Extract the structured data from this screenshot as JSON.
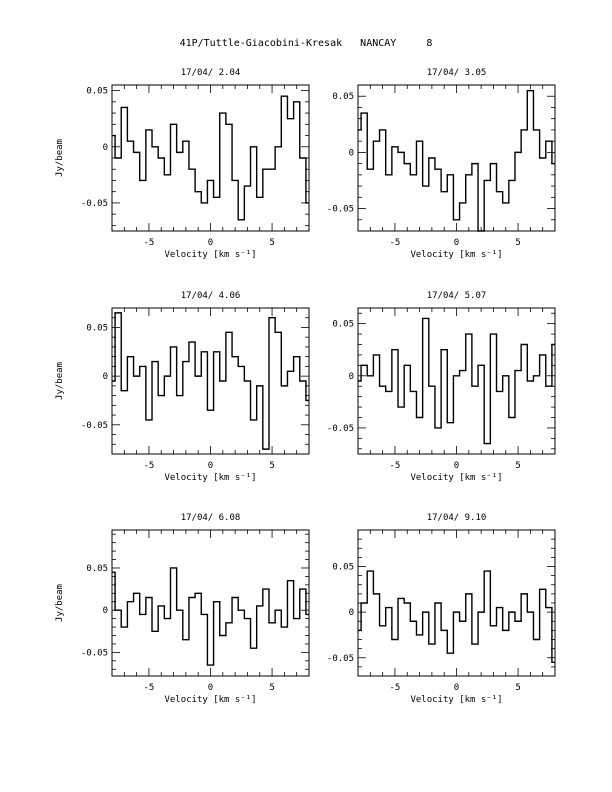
{
  "page": {
    "title": "41P/Tuttle-Giacobini-Kresak   NANCAY     8"
  },
  "chart_data": [
    {
      "type": "line",
      "title": "17/04/ 2.04",
      "xlabel": "Velocity [km s⁻¹]",
      "ylabel": "Jy/beam",
      "xlim": [
        -8,
        8
      ],
      "ylim": [
        -0.075,
        0.055
      ],
      "xticks": [
        -5,
        0,
        5
      ],
      "yticks": [
        0.05,
        0,
        -0.05
      ],
      "ytick_labels": [
        "0.05",
        "0",
        "-0.05"
      ],
      "series": [
        {
          "x": [
            -8,
            -7.5,
            -7,
            -6.5,
            -6,
            -5.5,
            -5,
            -4.5,
            -4,
            -3.5,
            -3,
            -2.5,
            -2,
            -1.5,
            -1,
            -0.5,
            0,
            0.5,
            1,
            1.5,
            2,
            2.5,
            3,
            3.5,
            4,
            4.5,
            5,
            5.5,
            6,
            6.5,
            7,
            7.5,
            8
          ],
          "values": [
            0.01,
            -0.01,
            0.035,
            0.005,
            -0.005,
            -0.03,
            0.015,
            0.0,
            -0.01,
            -0.025,
            0.02,
            -0.005,
            0.005,
            -0.02,
            -0.04,
            -0.05,
            -0.03,
            -0.045,
            0.03,
            0.02,
            -0.03,
            -0.065,
            -0.035,
            0.0,
            -0.045,
            -0.02,
            -0.02,
            0.0,
            0.045,
            0.025,
            0.04,
            -0.01,
            -0.05
          ]
        }
      ]
    },
    {
      "type": "line",
      "title": "17/04/ 3.05",
      "xlabel": "Velocity [km s⁻¹]",
      "ylabel": "",
      "xlim": [
        -8,
        8
      ],
      "ylim": [
        -0.07,
        0.06
      ],
      "xticks": [
        -5,
        0,
        5
      ],
      "yticks": [
        0.05,
        0,
        -0.05
      ],
      "ytick_labels": [
        "0.05",
        "0",
        "-0.05"
      ],
      "series": [
        {
          "x": [
            -8,
            -7.5,
            -7,
            -6.5,
            -6,
            -5.5,
            -5,
            -4.5,
            -4,
            -3.5,
            -3,
            -2.5,
            -2,
            -1.5,
            -1,
            -0.5,
            0,
            0.5,
            1,
            1.5,
            2,
            2.5,
            3,
            3.5,
            4,
            4.5,
            5,
            5.5,
            6,
            6.5,
            7,
            7.5,
            8
          ],
          "values": [
            0.02,
            0.035,
            -0.015,
            0.01,
            0.02,
            -0.02,
            0.005,
            0.0,
            -0.01,
            -0.02,
            0.01,
            -0.03,
            -0.005,
            -0.015,
            -0.035,
            -0.02,
            -0.06,
            -0.045,
            -0.02,
            -0.01,
            -0.07,
            -0.025,
            -0.01,
            -0.035,
            -0.045,
            -0.025,
            0.0,
            0.02,
            0.055,
            0.02,
            -0.005,
            0.01,
            -0.01
          ]
        }
      ]
    },
    {
      "type": "line",
      "title": "17/04/ 4.06",
      "xlabel": "Velocity [km s⁻¹]",
      "ylabel": "Jy/beam",
      "xlim": [
        -8,
        8
      ],
      "ylim": [
        -0.08,
        0.07
      ],
      "xticks": [
        -5,
        0,
        5
      ],
      "yticks": [
        0.05,
        0,
        -0.05
      ],
      "ytick_labels": [
        "0.05",
        "0",
        "-0.05"
      ],
      "series": [
        {
          "x": [
            -8,
            -7.5,
            -7,
            -6.5,
            -6,
            -5.5,
            -5,
            -4.5,
            -4,
            -3.5,
            -3,
            -2.5,
            -2,
            -1.5,
            -1,
            -0.5,
            0,
            0.5,
            1,
            1.5,
            2,
            2.5,
            3,
            3.5,
            4,
            4.5,
            5,
            5.5,
            6,
            6.5,
            7,
            7.5,
            8
          ],
          "values": [
            -0.005,
            0.065,
            -0.015,
            0.02,
            0.0,
            0.01,
            -0.045,
            0.015,
            -0.02,
            0.0,
            0.03,
            -0.02,
            0.015,
            0.035,
            0.0,
            0.025,
            -0.035,
            0.025,
            -0.005,
            0.045,
            0.02,
            0.01,
            -0.005,
            -0.045,
            -0.01,
            -0.075,
            0.06,
            0.045,
            -0.01,
            0.005,
            0.02,
            -0.005,
            -0.025
          ]
        }
      ]
    },
    {
      "type": "line",
      "title": "17/04/ 5.07",
      "xlabel": "Velocity [km s⁻¹]",
      "ylabel": "",
      "xlim": [
        -8,
        8
      ],
      "ylim": [
        -0.075,
        0.065
      ],
      "xticks": [
        -5,
        0,
        5
      ],
      "yticks": [
        0.05,
        0,
        -0.05
      ],
      "ytick_labels": [
        "0.05",
        "0",
        "-0.05"
      ],
      "series": [
        {
          "x": [
            -8,
            -7.5,
            -7,
            -6.5,
            -6,
            -5.5,
            -5,
            -4.5,
            -4,
            -3.5,
            -3,
            -2.5,
            -2,
            -1.5,
            -1,
            -0.5,
            0,
            0.5,
            1,
            1.5,
            2,
            2.5,
            3,
            3.5,
            4,
            4.5,
            5,
            5.5,
            6,
            6.5,
            7,
            7.5,
            8
          ],
          "values": [
            -0.005,
            0.01,
            0.0,
            0.02,
            -0.01,
            -0.015,
            0.025,
            -0.03,
            0.01,
            -0.015,
            -0.04,
            0.055,
            -0.01,
            -0.05,
            0.025,
            -0.045,
            0.0,
            0.005,
            0.04,
            -0.01,
            0.01,
            -0.065,
            0.04,
            -0.015,
            0.0,
            -0.04,
            0.005,
            0.03,
            -0.005,
            0.0,
            0.02,
            -0.01,
            0.03
          ]
        }
      ]
    },
    {
      "type": "line",
      "title": "17/04/ 6.08",
      "xlabel": "Velocity [km s⁻¹]",
      "ylabel": "Jy/beam",
      "xlim": [
        -8,
        8
      ],
      "ylim": [
        -0.078,
        0.095
      ],
      "xticks": [
        -5,
        0,
        5
      ],
      "yticks": [
        0.05,
        0,
        -0.05
      ],
      "ytick_labels": [
        "0.05",
        "0",
        "-0.05"
      ],
      "series": [
        {
          "x": [
            -8,
            -7.5,
            -7,
            -6.5,
            -6,
            -5.5,
            -5,
            -4.5,
            -4,
            -3.5,
            -3,
            -2.5,
            -2,
            -1.5,
            -1,
            -0.5,
            0,
            0.5,
            1,
            1.5,
            2,
            2.5,
            3,
            3.5,
            4,
            4.5,
            5,
            5.5,
            6,
            6.5,
            7,
            7.5,
            8
          ],
          "values": [
            0.045,
            0.0,
            -0.02,
            0.01,
            0.02,
            -0.005,
            0.015,
            -0.025,
            0.005,
            -0.01,
            0.05,
            0.0,
            -0.035,
            0.015,
            0.02,
            -0.005,
            -0.065,
            0.01,
            -0.03,
            -0.015,
            0.015,
            0.0,
            -0.01,
            -0.045,
            0.005,
            0.025,
            -0.015,
            0.0,
            -0.02,
            0.035,
            -0.01,
            0.025,
            -0.005
          ]
        }
      ]
    },
    {
      "type": "line",
      "title": "17/04/ 9.10",
      "xlabel": "Velocity [km s⁻¹]",
      "ylabel": "",
      "xlim": [
        -8,
        8
      ],
      "ylim": [
        -0.07,
        0.09
      ],
      "xticks": [
        -5,
        0,
        5
      ],
      "yticks": [
        0.05,
        0,
        -0.05
      ],
      "ytick_labels": [
        "0.05",
        "0",
        "-0.05"
      ],
      "series": [
        {
          "x": [
            -8,
            -7.5,
            -7,
            -6.5,
            -6,
            -5.5,
            -5,
            -4.5,
            -4,
            -3.5,
            -3,
            -2.5,
            -2,
            -1.5,
            -1,
            -0.5,
            0,
            0.5,
            1,
            1.5,
            2,
            2.5,
            3,
            3.5,
            4,
            4.5,
            5,
            5.5,
            6,
            6.5,
            7,
            7.5,
            8
          ],
          "values": [
            -0.02,
            0.01,
            0.045,
            0.02,
            -0.015,
            0.005,
            -0.03,
            0.015,
            0.01,
            -0.01,
            -0.025,
            0.0,
            -0.035,
            0.01,
            -0.02,
            -0.045,
            0.0,
            -0.01,
            0.02,
            -0.035,
            0.0,
            0.045,
            -0.015,
            0.005,
            -0.02,
            0.0,
            -0.01,
            0.02,
            0.0,
            -0.03,
            0.025,
            0.005,
            -0.055
          ]
        }
      ]
    }
  ]
}
